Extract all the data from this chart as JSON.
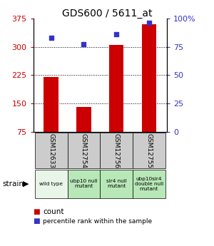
{
  "title": "GDS600 / 5611_at",
  "categories": [
    "GSM12633",
    "GSM12754",
    "GSM12756",
    "GSM12755"
  ],
  "strain_labels": [
    "wild type",
    "ubp10 null\nmutant",
    "sir4 null\nmutant",
    "ubp10sir4\ndouble null\nmutant"
  ],
  "bar_values": [
    220,
    140,
    305,
    360
  ],
  "dot_values_pct": [
    83,
    77,
    86,
    96
  ],
  "ylim_left": [
    75,
    375
  ],
  "ylim_right": [
    0,
    100
  ],
  "yticks_left": [
    75,
    150,
    225,
    300,
    375
  ],
  "yticks_right": [
    0,
    25,
    50,
    75,
    100
  ],
  "bar_color": "#cc0000",
  "dot_color": "#3333cc",
  "strain_bg_color_wild": "#e8f5e8",
  "strain_bg_color_mutant": "#b8e8b8",
  "gsm_bg_color": "#cccccc",
  "left_tick_color": "#cc0000",
  "right_tick_color": "#3333cc",
  "legend_count_color": "#cc0000",
  "legend_pct_color": "#3333cc",
  "grid_yticks": [
    150,
    225,
    300
  ]
}
